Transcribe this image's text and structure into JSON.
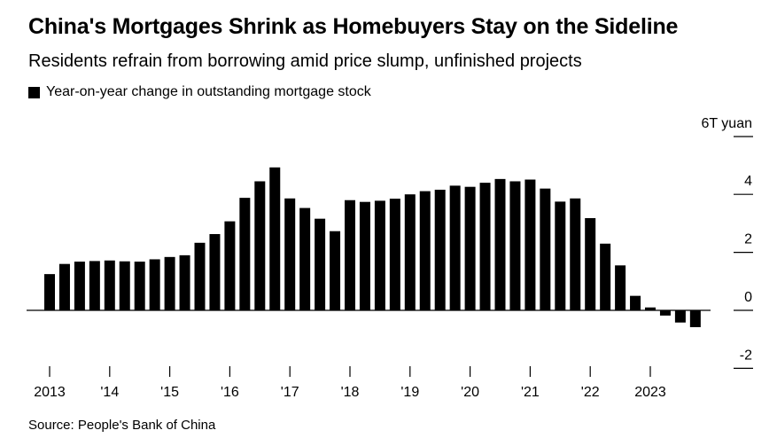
{
  "title": "China's Mortgages Shrink as Homebuyers Stay on the Sideline",
  "subtitle": "Residents refrain from borrowing amid price slump, unfinished projects",
  "legend_label": "Year-on-year change in outstanding mortgage stock",
  "source": "Source: People's Bank of China",
  "colors": {
    "bar": "#000000",
    "axis": "#000000",
    "text": "#000000"
  },
  "chart_data": {
    "type": "bar",
    "series": [
      {
        "name": "Year-on-year change in outstanding mortgage stock",
        "values": [
          1.25,
          1.6,
          1.68,
          1.7,
          1.72,
          1.69,
          1.68,
          1.76,
          1.84,
          1.9,
          2.33,
          2.63,
          3.07,
          3.88,
          4.45,
          4.93,
          3.86,
          3.53,
          3.16,
          2.73,
          3.8,
          3.74,
          3.78,
          3.85,
          4.0,
          4.11,
          4.16,
          4.3,
          4.26,
          4.4,
          4.53,
          4.45,
          4.51,
          4.2,
          3.75,
          3.86,
          3.18,
          2.3,
          1.55,
          0.5,
          0.1,
          -0.18,
          -0.42,
          -0.58
        ]
      }
    ],
    "x_ticks": [
      "2013",
      "'14",
      "'15",
      "'16",
      "'17",
      "'18",
      "'19",
      "'20",
      "'21",
      "'22",
      "2023"
    ],
    "x_tick_bar_index": [
      0,
      4,
      8,
      12,
      16,
      20,
      24,
      28,
      32,
      36,
      40
    ],
    "y_ticks": [
      "6T yuan",
      "4",
      "2",
      "0",
      "-2"
    ],
    "y_tick_values": [
      6,
      4,
      2,
      0,
      -2
    ],
    "ylim": [
      -2,
      6
    ],
    "grid": false,
    "legend_position": "top-left"
  }
}
